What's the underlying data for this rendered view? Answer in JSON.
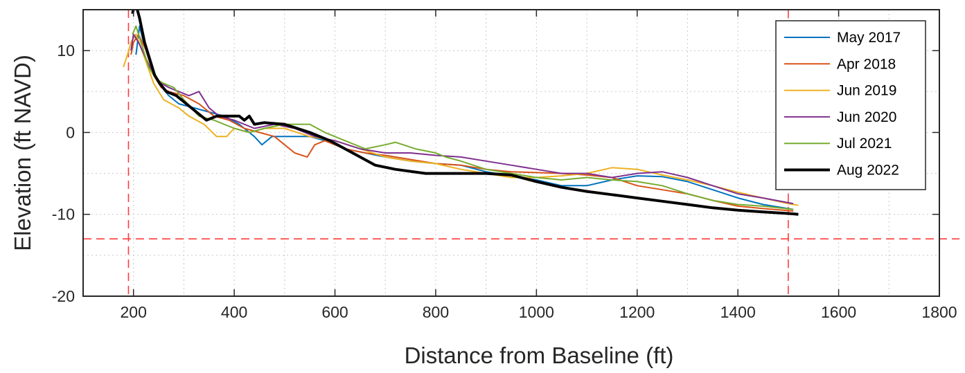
{
  "chart_data": {
    "type": "line",
    "xlabel": "Distance from Baseline (ft)",
    "ylabel": "Elevation (ft NAVD)",
    "xlim": [
      100,
      1800
    ],
    "ylim": [
      -20,
      15
    ],
    "xticks": [
      200,
      400,
      600,
      800,
      1000,
      1200,
      1400,
      1600,
      1800
    ],
    "yticks": [
      10,
      0,
      -10,
      -20
    ],
    "grid": true,
    "legend_position": "top-right",
    "reference_lines": [
      {
        "orientation": "vertical",
        "x": 190,
        "color": "#ff3b3b",
        "style": "dashed"
      },
      {
        "orientation": "vertical",
        "x": 1500,
        "color": "#ff3b3b",
        "style": "dashed"
      },
      {
        "orientation": "horizontal",
        "y": -13,
        "color": "#ff3b3b",
        "style": "dashed"
      }
    ],
    "series": [
      {
        "name": "May 2017",
        "color": "#0072BD",
        "points": [
          [
            205,
            9.5
          ],
          [
            208,
            11
          ],
          [
            212,
            13
          ],
          [
            220,
            11
          ],
          [
            235,
            8
          ],
          [
            250,
            6
          ],
          [
            270,
            4.5
          ],
          [
            290,
            3.5
          ],
          [
            320,
            3
          ],
          [
            350,
            2.5
          ],
          [
            380,
            2
          ],
          [
            410,
            1
          ],
          [
            440,
            -0.5
          ],
          [
            455,
            -1.5
          ],
          [
            475,
            -0.5
          ],
          [
            500,
            -0.5
          ],
          [
            550,
            -0.5
          ],
          [
            580,
            -1
          ],
          [
            620,
            -2
          ],
          [
            660,
            -2.5
          ],
          [
            700,
            -3
          ],
          [
            750,
            -3.5
          ],
          [
            800,
            -3.8
          ],
          [
            850,
            -4
          ],
          [
            900,
            -4.8
          ],
          [
            950,
            -5.3
          ],
          [
            1000,
            -5.8
          ],
          [
            1050,
            -6.5
          ],
          [
            1100,
            -6.5
          ],
          [
            1150,
            -5.8
          ],
          [
            1200,
            -5.3
          ],
          [
            1250,
            -5.4
          ],
          [
            1300,
            -6
          ],
          [
            1350,
            -7
          ],
          [
            1400,
            -8
          ],
          [
            1450,
            -8.8
          ],
          [
            1510,
            -9.4
          ]
        ]
      },
      {
        "name": "Apr 2018",
        "color": "#D95319",
        "points": [
          [
            195,
            9.5
          ],
          [
            200,
            11
          ],
          [
            210,
            12
          ],
          [
            225,
            10
          ],
          [
            240,
            7
          ],
          [
            255,
            5.5
          ],
          [
            270,
            5
          ],
          [
            300,
            4.5
          ],
          [
            330,
            3.5
          ],
          [
            360,
            2
          ],
          [
            390,
            1.5
          ],
          [
            420,
            0.5
          ],
          [
            450,
            0
          ],
          [
            480,
            -0.5
          ],
          [
            500,
            -1.5
          ],
          [
            520,
            -2.5
          ],
          [
            545,
            -3
          ],
          [
            560,
            -1.5
          ],
          [
            580,
            -1
          ],
          [
            620,
            -2
          ],
          [
            660,
            -2.5
          ],
          [
            700,
            -2.8
          ],
          [
            750,
            -3.3
          ],
          [
            800,
            -3.8
          ],
          [
            850,
            -4
          ],
          [
            900,
            -4.5
          ],
          [
            950,
            -4.8
          ],
          [
            1000,
            -4.9
          ],
          [
            1050,
            -5
          ],
          [
            1100,
            -5.2
          ],
          [
            1150,
            -5.5
          ],
          [
            1200,
            -6.5
          ],
          [
            1250,
            -7
          ],
          [
            1300,
            -7.5
          ],
          [
            1350,
            -8.3
          ],
          [
            1400,
            -9
          ],
          [
            1450,
            -9.3
          ],
          [
            1510,
            -9.6
          ]
        ]
      },
      {
        "name": "Jun 2019",
        "color": "#EDB120",
        "points": [
          [
            180,
            8
          ],
          [
            188,
            9.5
          ],
          [
            195,
            11
          ],
          [
            205,
            12
          ],
          [
            220,
            9.5
          ],
          [
            240,
            6
          ],
          [
            260,
            4
          ],
          [
            290,
            3
          ],
          [
            310,
            2
          ],
          [
            340,
            1
          ],
          [
            365,
            -0.5
          ],
          [
            385,
            -0.5
          ],
          [
            400,
            0.5
          ],
          [
            430,
            0
          ],
          [
            460,
            0.5
          ],
          [
            500,
            0.5
          ],
          [
            550,
            -0.5
          ],
          [
            600,
            -1
          ],
          [
            650,
            -2
          ],
          [
            700,
            -3
          ],
          [
            750,
            -3.5
          ],
          [
            800,
            -3.8
          ],
          [
            850,
            -4.5
          ],
          [
            900,
            -5
          ],
          [
            950,
            -5.5
          ],
          [
            1000,
            -5.5
          ],
          [
            1050,
            -5.3
          ],
          [
            1100,
            -5
          ],
          [
            1150,
            -4.3
          ],
          [
            1200,
            -4.5
          ],
          [
            1250,
            -5.2
          ],
          [
            1300,
            -5.8
          ],
          [
            1350,
            -6.5
          ],
          [
            1400,
            -7.3
          ],
          [
            1450,
            -8
          ],
          [
            1500,
            -8.7
          ],
          [
            1520,
            -8.9
          ]
        ]
      },
      {
        "name": "Jun 2020",
        "color": "#7E2F8E",
        "points": [
          [
            195,
            10
          ],
          [
            200,
            12
          ],
          [
            210,
            11
          ],
          [
            225,
            9
          ],
          [
            240,
            7
          ],
          [
            255,
            6
          ],
          [
            270,
            5.5
          ],
          [
            290,
            5
          ],
          [
            310,
            4.5
          ],
          [
            330,
            5
          ],
          [
            350,
            3
          ],
          [
            370,
            2
          ],
          [
            400,
            1.5
          ],
          [
            440,
            0.5
          ],
          [
            480,
            1
          ],
          [
            520,
            0.5
          ],
          [
            560,
            -0.5
          ],
          [
            600,
            -1
          ],
          [
            650,
            -2
          ],
          [
            700,
            -2.5
          ],
          [
            750,
            -2.5
          ],
          [
            800,
            -2.8
          ],
          [
            850,
            -3
          ],
          [
            900,
            -3.5
          ],
          [
            950,
            -4
          ],
          [
            1000,
            -4.5
          ],
          [
            1050,
            -5
          ],
          [
            1100,
            -5
          ],
          [
            1150,
            -5.5
          ],
          [
            1200,
            -5
          ],
          [
            1250,
            -4.8
          ],
          [
            1300,
            -5.5
          ],
          [
            1350,
            -6.5
          ],
          [
            1400,
            -7.5
          ],
          [
            1450,
            -8
          ],
          [
            1510,
            -8.7
          ]
        ]
      },
      {
        "name": "Jul 2021",
        "color": "#77AC30",
        "points": [
          [
            198,
            12
          ],
          [
            205,
            13
          ],
          [
            215,
            11
          ],
          [
            230,
            8
          ],
          [
            245,
            6.5
          ],
          [
            260,
            6
          ],
          [
            280,
            5.5
          ],
          [
            300,
            4
          ],
          [
            330,
            2
          ],
          [
            360,
            1.5
          ],
          [
            400,
            0.5
          ],
          [
            430,
            0
          ],
          [
            460,
            0.5
          ],
          [
            500,
            1
          ],
          [
            550,
            1
          ],
          [
            580,
            0
          ],
          [
            620,
            -1
          ],
          [
            660,
            -2
          ],
          [
            700,
            -1.5
          ],
          [
            720,
            -1.2
          ],
          [
            760,
            -2
          ],
          [
            800,
            -2.5
          ],
          [
            820,
            -3
          ],
          [
            850,
            -3.5
          ],
          [
            900,
            -4.5
          ],
          [
            950,
            -5
          ],
          [
            1000,
            -5.5
          ],
          [
            1050,
            -5.8
          ],
          [
            1100,
            -5.5
          ],
          [
            1150,
            -5.8
          ],
          [
            1200,
            -6
          ],
          [
            1250,
            -6.5
          ],
          [
            1300,
            -7.5
          ],
          [
            1350,
            -8.3
          ],
          [
            1400,
            -8.8
          ],
          [
            1450,
            -9
          ],
          [
            1510,
            -9.4
          ]
        ]
      },
      {
        "name": "Aug 2022",
        "color": "#000000",
        "points": [
          [
            198,
            14.5
          ],
          [
            203,
            16
          ],
          [
            212,
            14
          ],
          [
            222,
            11
          ],
          [
            232,
            9
          ],
          [
            242,
            7
          ],
          [
            252,
            6
          ],
          [
            265,
            5
          ],
          [
            285,
            4.5
          ],
          [
            305,
            3.5
          ],
          [
            325,
            2.5
          ],
          [
            345,
            1.5
          ],
          [
            365,
            2
          ],
          [
            390,
            2
          ],
          [
            410,
            2
          ],
          [
            420,
            1.5
          ],
          [
            430,
            2
          ],
          [
            440,
            1
          ],
          [
            460,
            1.2
          ],
          [
            500,
            1
          ],
          [
            550,
            0
          ],
          [
            590,
            -1
          ],
          [
            620,
            -2
          ],
          [
            650,
            -3
          ],
          [
            680,
            -4
          ],
          [
            720,
            -4.5
          ],
          [
            780,
            -5
          ],
          [
            850,
            -5
          ],
          [
            900,
            -5
          ],
          [
            950,
            -5.2
          ],
          [
            1000,
            -6
          ],
          [
            1050,
            -6.7
          ],
          [
            1100,
            -7.2
          ],
          [
            1150,
            -7.6
          ],
          [
            1200,
            -8
          ],
          [
            1250,
            -8.4
          ],
          [
            1300,
            -8.8
          ],
          [
            1350,
            -9.2
          ],
          [
            1400,
            -9.5
          ],
          [
            1450,
            -9.7
          ],
          [
            1500,
            -9.9
          ],
          [
            1520,
            -10
          ]
        ]
      }
    ]
  }
}
